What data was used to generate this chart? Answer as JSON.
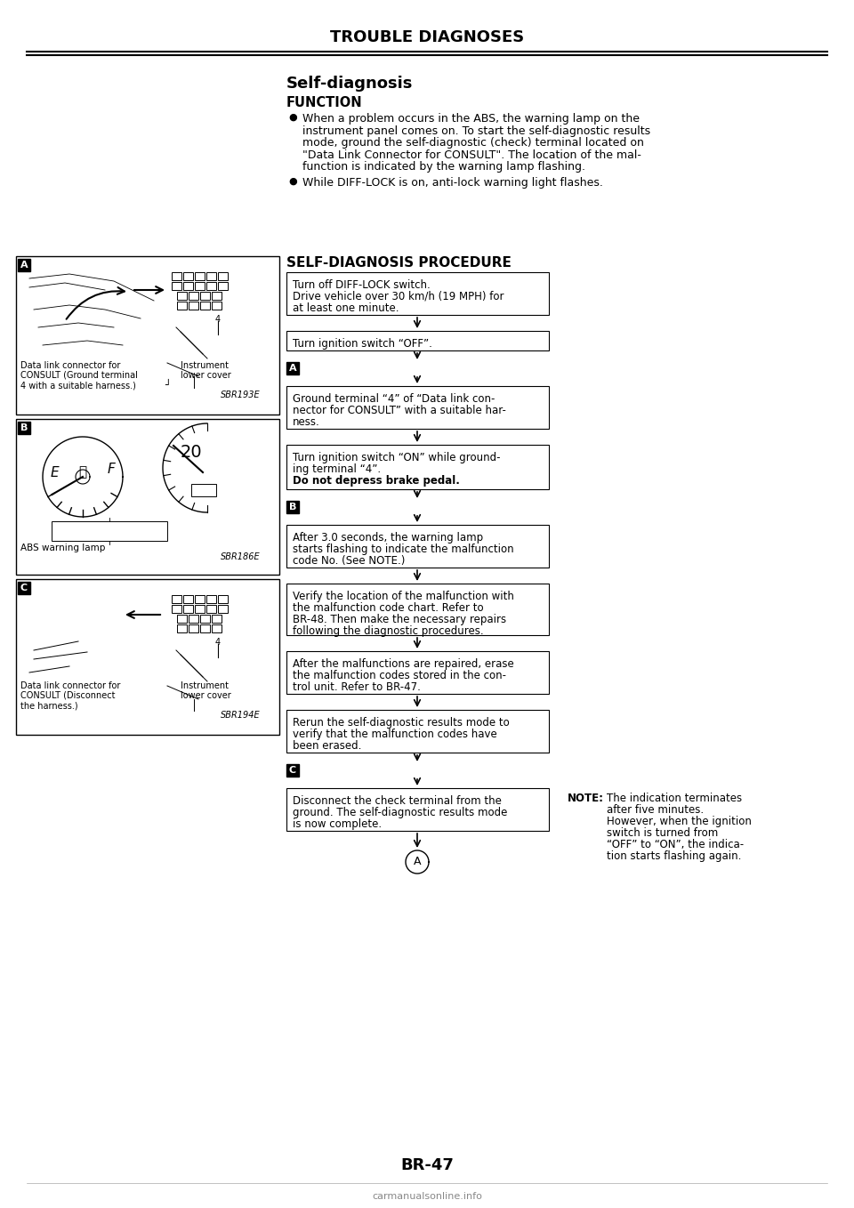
{
  "page_title": "TROUBLE DIAGNOSES",
  "section_title": "Self-diagnosis",
  "function_heading": "FUNCTION",
  "bullet1_lines": [
    "When a problem occurs in the ABS, the warning lamp on the",
    "instrument panel comes on. To start the self-diagnostic results",
    "mode, ground the self-diagnostic (check) terminal located on",
    "\"Data Link Connector for CONSULT\". The location of the mal-",
    "function is indicated by the warning lamp flashing."
  ],
  "bullet2": "While DIFF-LOCK is on, anti-lock warning light flashes.",
  "procedure_heading": "SELF-DIAGNOSIS PROCEDURE",
  "box1_lines": [
    "Turn off DIFF-LOCK switch.",
    "Drive vehicle over 30 km/h (19 MPH) for",
    "at least one minute."
  ],
  "box2_lines": [
    "Turn ignition switch “OFF”."
  ],
  "box3_lines": [
    "Ground terminal “4” of “Data link con-",
    "nector for CONSULT” with a suitable har-",
    "ness."
  ],
  "box4_lines": [
    "Turn ignition switch “ON” while ground-",
    "ing terminal “4”.",
    "Do not depress brake pedal."
  ],
  "box4_bold_line": "Do not depress brake pedal.",
  "box5_lines": [
    "After 3.0 seconds, the warning lamp",
    "starts flashing to indicate the malfunction",
    "code No. (See NOTE.)"
  ],
  "box6_lines": [
    "Verify the location of the malfunction with",
    "the malfunction code chart. Refer to",
    "BR-48. Then make the necessary repairs",
    "following the diagnostic procedures."
  ],
  "box7_lines": [
    "After the malfunctions are repaired, erase",
    "the malfunction codes stored in the con-",
    "trol unit. Refer to BR-47."
  ],
  "box8_lines": [
    "Rerun the self-diagnostic results mode to",
    "verify that the malfunction codes have",
    "been erased."
  ],
  "box9_lines": [
    "Disconnect the check terminal from the",
    "ground. The self-diagnostic results mode",
    "is now complete."
  ],
  "note_title": "NOTE:",
  "note_lines": [
    "The indication terminates",
    "after five minutes.",
    "However, when the ignition",
    "switch is turned from",
    "“OFF” to “ON”, the indica-",
    "tion starts flashing again."
  ],
  "page_number": "BR-47",
  "footer": "carmanualsonline.info",
  "img_label_A": "SBR193E",
  "img_label_B": "SBR186E",
  "img_label_C": "SBR194E",
  "img_cap_A1": "Data link connector for",
  "img_cap_A2": "CONSULT (Ground terminal",
  "img_cap_A3": "4 with a suitable harness.)",
  "img_cap_A4": "Instrument",
  "img_cap_A5": "lower cover",
  "img_cap_B1": "ABS warning lamp",
  "img_cap_C1": "Data link connector for",
  "img_cap_C2": "CONSULT (Disconnect",
  "img_cap_C3": "the harness.)",
  "img_cap_C4": "Instrument",
  "img_cap_C5": "lower cover",
  "bg_color": "#ffffff",
  "text_color": "#000000"
}
